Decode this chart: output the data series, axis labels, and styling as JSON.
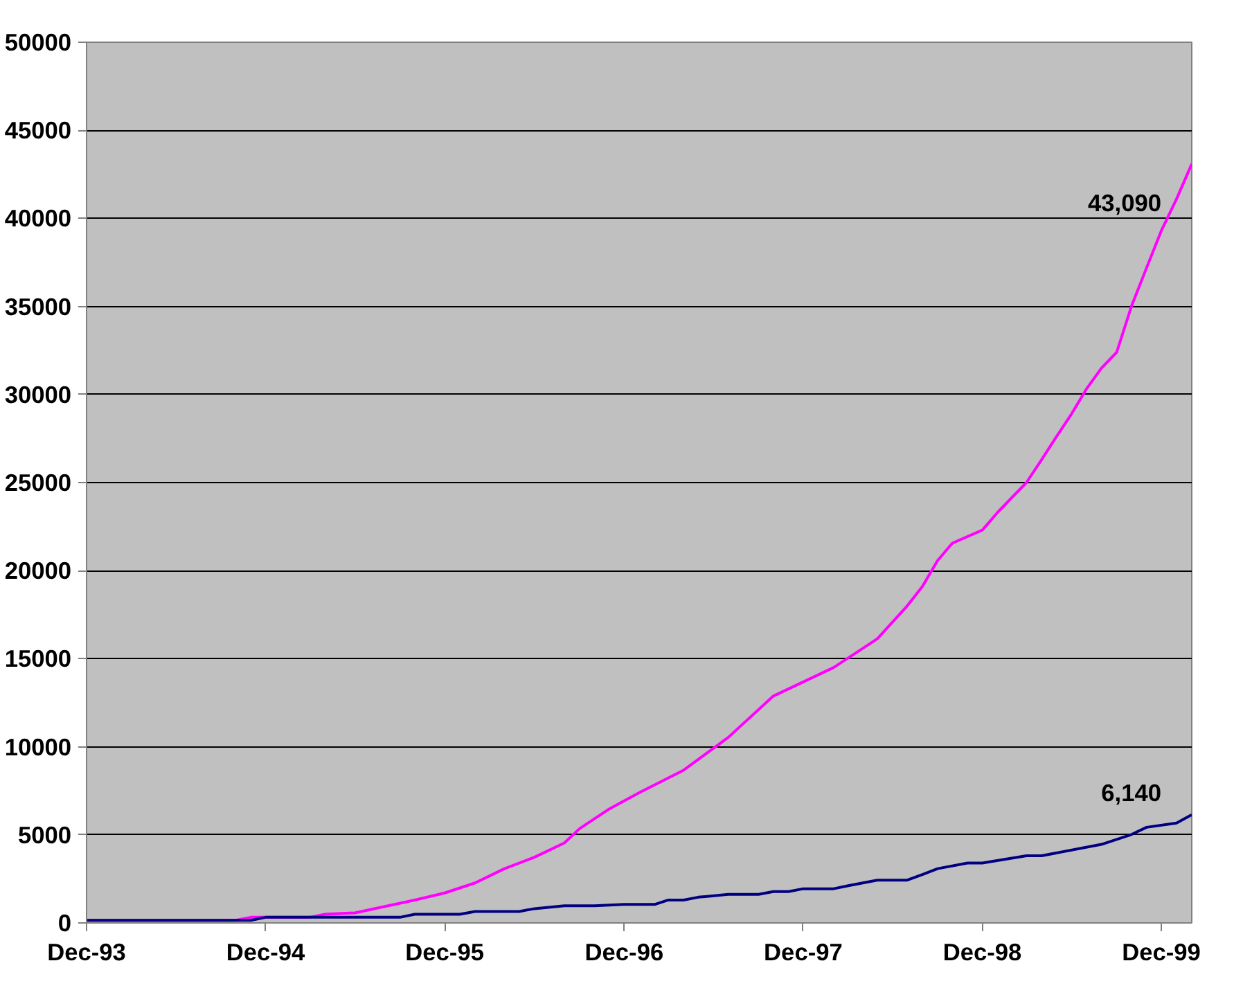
{
  "chart_data": {
    "type": "line",
    "series": [
      {
        "color": "#ff00ff",
        "x": [
          "1993-12",
          "1994-10",
          "1994-11",
          "1995-03",
          "1995-04",
          "1995-06",
          "1995-10",
          "1995-12",
          "1996-02",
          "1996-04",
          "1996-06",
          "1996-08",
          "1996-09",
          "1996-11",
          "1997-01",
          "1997-04",
          "1997-07",
          "1997-10",
          "1998-02",
          "1998-05",
          "1998-07",
          "1998-08",
          "1998-09",
          "1998-10",
          "1998-12",
          "1999-01",
          "1999-02",
          "1999-03",
          "1999-04",
          "1999-05",
          "1999-06",
          "1999-07",
          "1999-08",
          "1999-09",
          "1999-10",
          "1999-11",
          "1999-12",
          "2000-01",
          "2000-02"
        ],
        "values": [
          150,
          150,
          320,
          320,
          490,
          570,
          1300,
          1700,
          2270,
          3080,
          3730,
          4540,
          5350,
          6480,
          7400,
          8670,
          10530,
          12880,
          14500,
          16130,
          18000,
          19100,
          20580,
          21560,
          22300,
          23300,
          24200,
          25000,
          26300,
          27600,
          28900,
          30300,
          31500,
          32400,
          35000,
          37200,
          39300,
          41100,
          43090
        ]
      },
      {
        "color": "#000080",
        "x": [
          "1993-12",
          "1994-11",
          "1994-12",
          "1995-09",
          "1995-10",
          "1996-01",
          "1996-02",
          "1996-05",
          "1996-06",
          "1996-08",
          "1996-10",
          "1996-12",
          "1997-02",
          "1997-03",
          "1997-04",
          "1997-05",
          "1997-07",
          "1997-09",
          "1997-10",
          "1997-11",
          "1997-12",
          "1998-02",
          "1998-03",
          "1998-05",
          "1998-07",
          "1998-08",
          "1998-09",
          "1998-11",
          "1998-12",
          "1999-03",
          "1999-04",
          "1999-08",
          "1999-10",
          "1999-11",
          "2000-01",
          "2000-02"
        ],
        "values": [
          150,
          150,
          320,
          320,
          490,
          490,
          650,
          650,
          810,
          970,
          970,
          1050,
          1050,
          1300,
          1300,
          1460,
          1620,
          1620,
          1780,
          1780,
          1940,
          1940,
          2100,
          2430,
          2430,
          2750,
          3080,
          3400,
          3400,
          3810,
          3810,
          4460,
          5020,
          5430,
          5670,
          6140
        ]
      }
    ],
    "xlim": [
      "1993-12",
      "2000-02"
    ],
    "xticks": [
      {
        "value": "1993-12",
        "label": "Dec-93"
      },
      {
        "value": "1994-12",
        "label": "Dec-94"
      },
      {
        "value": "1995-12",
        "label": "Dec-95"
      },
      {
        "value": "1996-12",
        "label": "Dec-96"
      },
      {
        "value": "1997-12",
        "label": "Dec-97"
      },
      {
        "value": "1998-12",
        "label": "Dec-98"
      },
      {
        "value": "1999-12",
        "label": "Dec-99"
      }
    ],
    "ylim": [
      0,
      50000
    ],
    "yticks": [
      0,
      5000,
      10000,
      15000,
      20000,
      25000,
      30000,
      35000,
      40000,
      45000,
      50000
    ],
    "grid": "y",
    "annotations": [
      {
        "text": "43,090",
        "x": "2000-02",
        "y": 43090
      },
      {
        "text": "6,140",
        "x": "2000-02",
        "y": 6140
      }
    ]
  }
}
